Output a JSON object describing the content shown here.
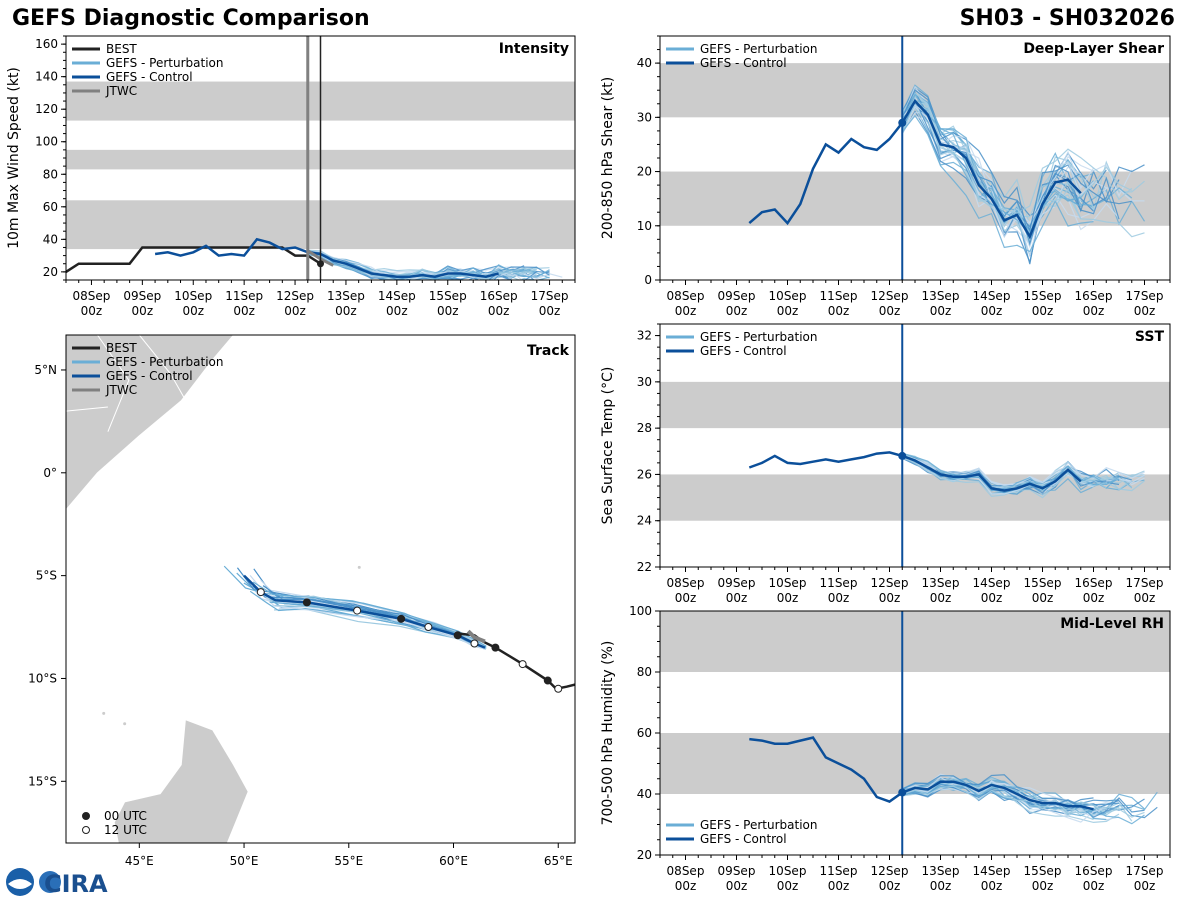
{
  "header": {
    "title": "GEFS Diagnostic Comparison",
    "storm_id": "SH03 - SH032026"
  },
  "logo": {
    "text": "CIRA"
  },
  "time_ticks": [
    {
      "day": "08Sep",
      "hour": "00z",
      "t": 0
    },
    {
      "day": "09Sep",
      "hour": "00z",
      "t": 24
    },
    {
      "day": "10Sep",
      "hour": "00z",
      "t": 48
    },
    {
      "day": "11Sep",
      "hour": "00z",
      "t": 72
    },
    {
      "day": "12Sep",
      "hour": "00z",
      "t": 96
    },
    {
      "day": "13Sep",
      "hour": "00z",
      "t": 120
    },
    {
      "day": "14Sep",
      "hour": "00z",
      "t": 144
    },
    {
      "day": "15Sep",
      "hour": "00z",
      "t": 168
    },
    {
      "day": "16Sep",
      "hour": "00z",
      "t": 192
    },
    {
      "day": "17Sep",
      "hour": "00z",
      "t": 216
    }
  ],
  "colors": {
    "best": "#222222",
    "perturbation": "#6aaed6",
    "control": "#0b4f9a",
    "jtwc": "#808080",
    "band": "#cccccc"
  },
  "chart_data": [
    {
      "id": "intensity",
      "type": "line",
      "title": "Intensity",
      "ylabel": "10m Max Wind Speed (kt)",
      "ylim": [
        15,
        165
      ],
      "yticks": [
        20,
        40,
        60,
        80,
        100,
        120,
        140,
        160
      ],
      "xlim": [
        -12,
        228
      ],
      "bands": [
        [
          34,
          64
        ],
        [
          83,
          95
        ],
        [
          113,
          137
        ]
      ],
      "init_time": 102,
      "jtwc_time": 102,
      "best_time_line": 108,
      "legend": [
        "BEST",
        "GEFS - Perturbation",
        "GEFS - Control",
        "JTWC"
      ],
      "series": [
        {
          "name": "BEST",
          "x": [
            -12,
            -6,
            0,
            6,
            12,
            18,
            24,
            30,
            36,
            42,
            48,
            54,
            60,
            66,
            72,
            78,
            84,
            90,
            96,
            102,
            108
          ],
          "y": [
            20,
            25,
            25,
            25,
            25,
            25,
            35,
            35,
            35,
            35,
            35,
            35,
            35,
            35,
            35,
            35,
            35,
            35,
            30,
            30,
            25
          ]
        },
        {
          "name": "GEFS - Control",
          "x": [
            30,
            36,
            42,
            48,
            54,
            60,
            66,
            72,
            78,
            84,
            90,
            96,
            102,
            108,
            114,
            120,
            126,
            132,
            138,
            144,
            150,
            156,
            162,
            168,
            174,
            180,
            186,
            192
          ],
          "y": [
            31,
            32,
            30,
            32,
            36,
            30,
            31,
            30,
            40,
            38,
            34,
            35,
            32,
            31,
            27,
            25,
            22,
            19,
            18,
            17,
            17,
            18,
            17,
            19,
            19,
            18,
            17,
            19
          ]
        },
        {
          "name": "JTWC",
          "x": [
            102,
            108,
            114
          ],
          "y": [
            33,
            28,
            24
          ]
        }
      ]
    },
    {
      "id": "shear",
      "type": "line",
      "title": "Deep-Layer Shear",
      "ylabel": "200-850 hPa Shear (kt)",
      "ylim": [
        0,
        45
      ],
      "yticks": [
        0,
        10,
        20,
        30,
        40
      ],
      "xlim": [
        -12,
        228
      ],
      "bands": [
        [
          10,
          20
        ],
        [
          30,
          40
        ]
      ],
      "init_time": 102,
      "legend": [
        "GEFS - Perturbation",
        "GEFS - Control"
      ],
      "series": [
        {
          "name": "GEFS - Control",
          "x": [
            30,
            36,
            42,
            48,
            54,
            60,
            66,
            72,
            78,
            84,
            90,
            96,
            102,
            108,
            114,
            120,
            126,
            132,
            138,
            144,
            150,
            156,
            162,
            168,
            174,
            180,
            186
          ],
          "y": [
            10.5,
            12.5,
            13,
            10.5,
            14,
            20.5,
            25,
            23.5,
            26,
            24.5,
            24,
            26,
            29,
            33,
            30.5,
            25,
            24.5,
            22.5,
            17.5,
            15,
            11,
            12,
            8,
            14,
            18,
            18.5,
            16
          ]
        }
      ]
    },
    {
      "id": "sst",
      "type": "line",
      "title": "SST",
      "ylabel": "Sea Surface Temp (°C)",
      "ylim": [
        22,
        32.5
      ],
      "yticks": [
        22,
        24,
        26,
        28,
        30,
        32
      ],
      "xlim": [
        -12,
        228
      ],
      "bands": [
        [
          24,
          26
        ],
        [
          28,
          30
        ]
      ],
      "init_time": 102,
      "legend": [
        "GEFS - Perturbation",
        "GEFS - Control"
      ],
      "series": [
        {
          "name": "GEFS - Control",
          "x": [
            30,
            36,
            42,
            48,
            54,
            60,
            66,
            72,
            78,
            84,
            90,
            96,
            102,
            108,
            114,
            120,
            126,
            132,
            138,
            144,
            150,
            156,
            162,
            168,
            174,
            180,
            186
          ],
          "y": [
            26.3,
            26.5,
            26.8,
            26.5,
            26.45,
            26.55,
            26.65,
            26.55,
            26.65,
            26.75,
            26.9,
            26.95,
            26.8,
            26.6,
            26.3,
            26.0,
            25.9,
            25.9,
            26.0,
            25.4,
            25.3,
            25.4,
            25.6,
            25.4,
            25.7,
            26.2,
            25.7
          ]
        }
      ]
    },
    {
      "id": "rh",
      "type": "line",
      "title": "Mid-Level RH",
      "ylabel": "700-500 hPa Humidity (%)",
      "ylim": [
        20,
        100
      ],
      "yticks": [
        20,
        40,
        60,
        80,
        100
      ],
      "xlim": [
        -12,
        228
      ],
      "bands": [
        [
          40,
          60
        ],
        [
          80,
          100
        ]
      ],
      "init_time": 102,
      "legend": [
        "GEFS - Perturbation",
        "GEFS - Control"
      ],
      "series": [
        {
          "name": "GEFS - Control",
          "x": [
            30,
            36,
            42,
            48,
            54,
            60,
            66,
            72,
            78,
            84,
            90,
            96,
            102,
            108,
            114,
            120,
            126,
            132,
            138,
            144,
            150,
            156,
            162,
            168,
            174,
            180,
            186,
            192
          ],
          "y": [
            58,
            57.5,
            56.5,
            56.5,
            57.5,
            58.5,
            52,
            50,
            48,
            45,
            39,
            37.5,
            40.5,
            42,
            41.5,
            44,
            44,
            43,
            41,
            43,
            42,
            40,
            38,
            37,
            37,
            36,
            36,
            35
          ]
        }
      ]
    },
    {
      "id": "track",
      "type": "scatter",
      "title": "Track",
      "xlim": [
        41.5,
        65.8
      ],
      "ylim": [
        -18,
        6.7
      ],
      "xticks": [
        45,
        50,
        55,
        60,
        65
      ],
      "xtick_labels": [
        "45°E",
        "50°E",
        "55°E",
        "60°E",
        "65°E"
      ],
      "yticks": [
        5,
        0,
        -5,
        -10,
        -15
      ],
      "ytick_labels": [
        "5°N",
        "0°",
        "5°S",
        "10°S",
        "15°S"
      ],
      "legend": [
        "BEST",
        "GEFS - Perturbation",
        "GEFS - Control",
        "JTWC"
      ],
      "marker_legend": [
        "00 UTC",
        "12 UTC"
      ],
      "best_track": {
        "lon": [
          65.8,
          65.4,
          64.9,
          64.5,
          63.3,
          62.0,
          61.4,
          61.0,
          60.1
        ],
        "lat": [
          -10.3,
          -10.4,
          -10.5,
          -10.1,
          -9.3,
          -8.5,
          -8.2,
          -7.9,
          -7.8
        ]
      },
      "control_track": {
        "lon": [
          61.5,
          61.0,
          60.2,
          58.8,
          57.5,
          55.4,
          53.0,
          51.5,
          50.8,
          50.0
        ],
        "lat": [
          -8.5,
          -8.3,
          -7.9,
          -7.5,
          -7.1,
          -6.7,
          -6.3,
          -6.2,
          -5.8,
          -5.0
        ]
      },
      "jtwc_track": {
        "lon": [
          61.5,
          61.0,
          60.7
        ],
        "lat": [
          -8.2,
          -8.0,
          -7.7
        ]
      },
      "control_markers": [
        {
          "lon": 61.0,
          "lat": -8.3,
          "utc": "12"
        },
        {
          "lon": 60.2,
          "lat": -7.9,
          "utc": "00"
        },
        {
          "lon": 58.8,
          "lat": -7.5,
          "utc": "12"
        },
        {
          "lon": 57.5,
          "lat": -7.1,
          "utc": "00"
        },
        {
          "lon": 55.4,
          "lat": -6.7,
          "utc": "12"
        },
        {
          "lon": 53.0,
          "lat": -6.3,
          "utc": "00"
        },
        {
          "lon": 50.8,
          "lat": -5.8,
          "utc": "12"
        }
      ],
      "best_markers": [
        {
          "lon": 65.0,
          "lat": -10.5,
          "utc": "12"
        },
        {
          "lon": 64.5,
          "lat": -10.1,
          "utc": "00"
        },
        {
          "lon": 63.3,
          "lat": -9.3,
          "utc": "12"
        },
        {
          "lon": 62.0,
          "lat": -8.5,
          "utc": "00"
        }
      ]
    }
  ]
}
